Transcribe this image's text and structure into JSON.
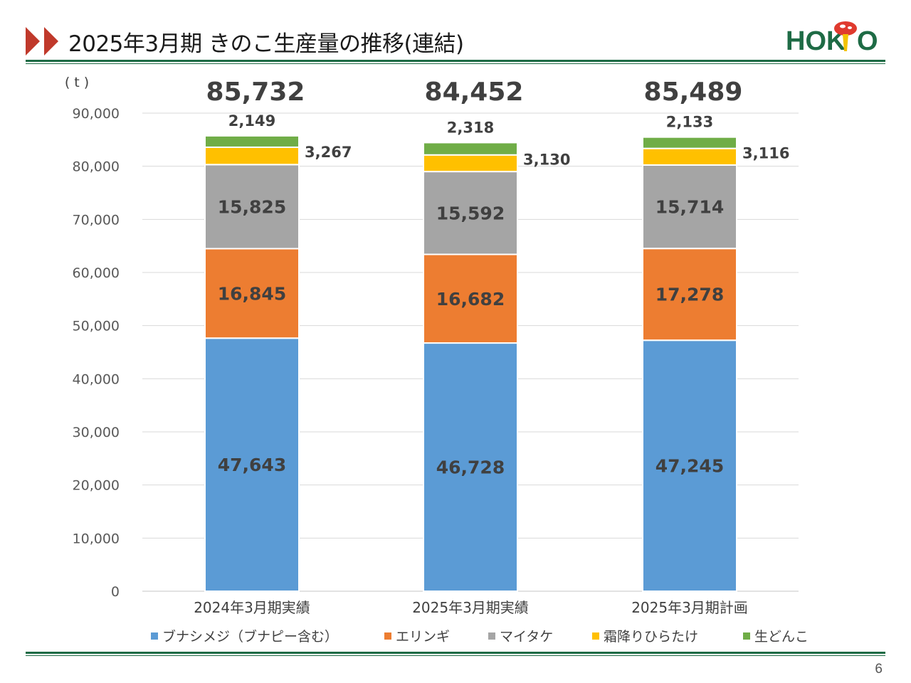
{
  "header": {
    "title": "2025年3月期 きのこ生産量の推移(連結)",
    "logo_text": "HOKTO"
  },
  "page_number": "6",
  "colors": {
    "accent_green": "#1e6b45",
    "arrow_red": "#c0392b",
    "bunashimeji": "#5b9bd5",
    "eringi": "#ed7d31",
    "maitake": "#a5a5a5",
    "shimofuri": "#ffc000",
    "namadonko": "#70ad47"
  },
  "chart_data": {
    "type": "bar",
    "stacked": true,
    "unit_label": "( t )",
    "categories": [
      "2024年3月期実績",
      "2025年3月期実績",
      "2025年3月期計画"
    ],
    "totals": [
      "85,732",
      "84,452",
      "85,489"
    ],
    "ylim": [
      0,
      90000
    ],
    "yticks": [
      "0",
      "10,000",
      "20,000",
      "30,000",
      "40,000",
      "50,000",
      "60,000",
      "70,000",
      "80,000",
      "90,000"
    ],
    "grid": true,
    "legend_position": "bottom",
    "series": [
      {
        "name": "ブナシメジ（ブナピー含む）",
        "values": [
          47643,
          46728,
          47245
        ],
        "labels": [
          "47,643",
          "46,728",
          "47,245"
        ]
      },
      {
        "name": "エリンギ",
        "values": [
          16845,
          16682,
          17278
        ],
        "labels": [
          "16,845",
          "16,682",
          "17,278"
        ]
      },
      {
        "name": "マイタケ",
        "values": [
          15825,
          15592,
          15714
        ],
        "labels": [
          "15,825",
          "15,592",
          "15,714"
        ]
      },
      {
        "name": "霜降りひらたけ",
        "values": [
          3267,
          3130,
          3116
        ],
        "labels": [
          "3,267",
          "3,130",
          "3,116"
        ]
      },
      {
        "name": "生どんこ",
        "values": [
          2149,
          2318,
          2133
        ],
        "labels": [
          "2,149",
          "2,318",
          "2,133"
        ]
      }
    ]
  }
}
